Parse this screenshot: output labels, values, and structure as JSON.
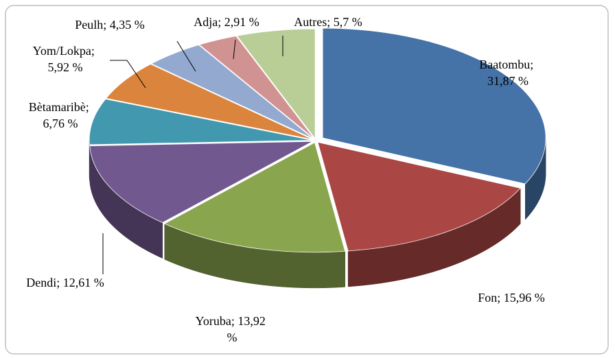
{
  "chart_data": {
    "type": "pie",
    "values": [
      31.87,
      15.96,
      13.92,
      12.61,
      6.76,
      5.92,
      4.35,
      2.91,
      5.7
    ],
    "value_labels": [
      "Baatombu; 31,87 %",
      "Fon; 15,96 %",
      "Yoruba; 13,92 %",
      "Dendi; 12,61 %",
      "Bètamaribè; 6,76 %",
      "Yom/Lokpa; 5,92 %",
      "Peulh; 4,35 %",
      "Adja; 2,91 %",
      "Autres; 5,7 %"
    ],
    "colors": [
      "#4572a7",
      "#aa4643",
      "#89a54e",
      "#71588f",
      "#4198af",
      "#db843d",
      "#93a9cf",
      "#d19392",
      "#b9cd96"
    ]
  }
}
